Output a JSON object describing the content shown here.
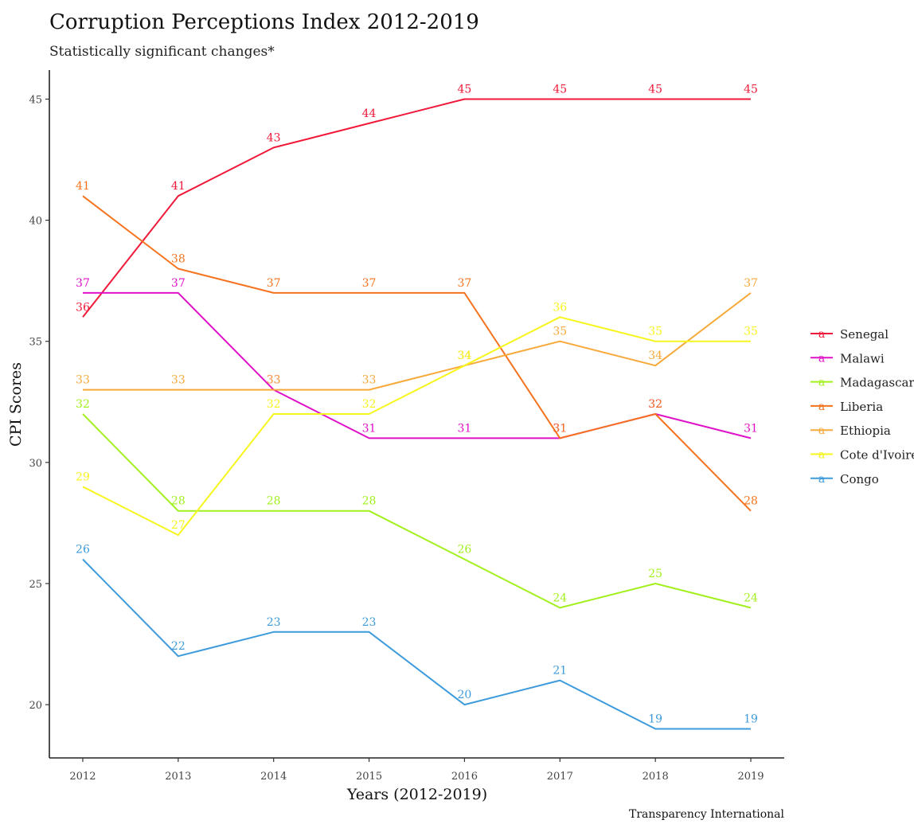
{
  "chart_data": {
    "type": "line",
    "title": "Corruption Perceptions Index 2012-2019",
    "subtitle": "Statistically significant changes*",
    "xlabel": "Years (2012-2019)",
    "ylabel": "CPI Scores",
    "caption": "Transparency International",
    "x": [
      2012,
      2013,
      2014,
      2015,
      2016,
      2017,
      2018,
      2019
    ],
    "xlim": [
      2011.65,
      2019.35
    ],
    "ylim": [
      17.8,
      46.2
    ],
    "yticks": [
      20,
      25,
      30,
      35,
      40,
      45
    ],
    "grid": false,
    "legend_position": "right",
    "legend_glyph": "a",
    "series": [
      {
        "name": "Senegal",
        "color": "#f0193a",
        "values": [
          36,
          41,
          43,
          44,
          45,
          45,
          45,
          45
        ]
      },
      {
        "name": "Malawi",
        "color": "#e012c8",
        "values": [
          37,
          37,
          33,
          31,
          31,
          31,
          32,
          31
        ]
      },
      {
        "name": "Madagascar",
        "color": "#a2f01e",
        "values": [
          32,
          28,
          28,
          28,
          26,
          24,
          25,
          24
        ]
      },
      {
        "name": "Liberia",
        "color": "#f5731e",
        "values": [
          41,
          38,
          37,
          37,
          37,
          31,
          32,
          28
        ]
      },
      {
        "name": "Ethiopia",
        "color": "#f7a93a",
        "values": [
          33,
          33,
          33,
          33,
          34,
          35,
          34,
          37
        ]
      },
      {
        "name": "Cote d'Ivoire",
        "color": "#f7f51e",
        "values": [
          29,
          27,
          32,
          32,
          34,
          36,
          35,
          35
        ]
      },
      {
        "name": "Congo",
        "color": "#3d9bdc",
        "values": [
          26,
          22,
          23,
          23,
          20,
          21,
          19,
          19
        ]
      }
    ]
  }
}
